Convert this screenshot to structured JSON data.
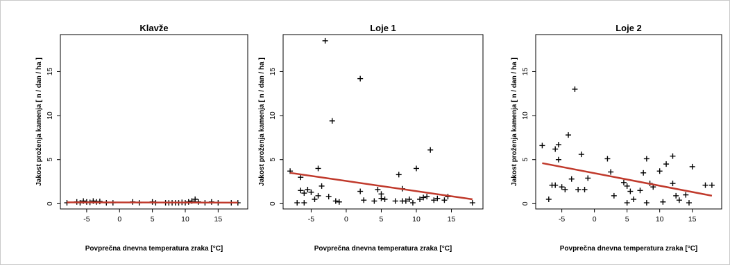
{
  "chart_data": [
    {
      "type": "scatter",
      "title": "Klavže",
      "xlabel": "Povprečna dnevna temperatura zraka [°C]",
      "ylabel": "Jakost proženja kamenja [ n / dan / ha ]",
      "xlim": [
        -9,
        19.5
      ],
      "ylim": [
        -0.6,
        19.2
      ],
      "xticks": [
        -5,
        0,
        5,
        10,
        15
      ],
      "yticks": [
        0,
        5,
        10,
        15
      ],
      "x_tick_labels": [
        "-5",
        "0",
        "5",
        "10",
        "15"
      ],
      "y_tick_labels": [
        "0",
        "5",
        "10",
        "15"
      ],
      "points": [
        [
          -8,
          0.1
        ],
        [
          -6.5,
          0.2
        ],
        [
          -6,
          0.1
        ],
        [
          -5.5,
          0.3
        ],
        [
          -5,
          0.2
        ],
        [
          -4.5,
          0.15
        ],
        [
          -4,
          0.3
        ],
        [
          -3.5,
          0.2
        ],
        [
          -3,
          0.25
        ],
        [
          -2,
          0.1
        ],
        [
          -1,
          0.1
        ],
        [
          2,
          0.2
        ],
        [
          3,
          0.1
        ],
        [
          5,
          0.2
        ],
        [
          5.5,
          0.1
        ],
        [
          7,
          0.1
        ],
        [
          7.5,
          0.1
        ],
        [
          8,
          0.1
        ],
        [
          8.5,
          0.1
        ],
        [
          9,
          0.1
        ],
        [
          9.5,
          0.15
        ],
        [
          10,
          0.1
        ],
        [
          10.5,
          0.2
        ],
        [
          11,
          0.3
        ],
        [
          11.5,
          0.5
        ],
        [
          12,
          0.2
        ],
        [
          13,
          0.1
        ],
        [
          14,
          0.2
        ],
        [
          15,
          0.1
        ],
        [
          17,
          0.1
        ],
        [
          18,
          0.1
        ]
      ],
      "trend": {
        "x": [
          -8,
          18
        ],
        "y": [
          0.15,
          0.12
        ]
      }
    },
    {
      "type": "scatter",
      "title": "Loje 1",
      "xlabel": "Povprečna dnevna temperatura zraka [°C]",
      "ylabel": "Jakost proženja kamenja [ n / dan / ha ]",
      "xlim": [
        -9,
        19.5
      ],
      "ylim": [
        -0.6,
        19.2
      ],
      "xticks": [
        -5,
        0,
        5,
        10,
        15
      ],
      "yticks": [
        0,
        5,
        10,
        15
      ],
      "x_tick_labels": [
        "-5",
        "0",
        "5",
        "10",
        "15"
      ],
      "y_tick_labels": [
        "0",
        "5",
        "10",
        "15"
      ],
      "points": [
        [
          -8,
          3.7
        ],
        [
          -7,
          0.1
        ],
        [
          -6.5,
          1.5
        ],
        [
          -6.5,
          3
        ],
        [
          -6,
          1.2
        ],
        [
          -6,
          0.1
        ],
        [
          -5.5,
          1.6
        ],
        [
          -5,
          1.3
        ],
        [
          -4.5,
          0.5
        ],
        [
          -4,
          4
        ],
        [
          -4,
          0.9
        ],
        [
          -3.5,
          2
        ],
        [
          -3,
          18.5
        ],
        [
          -2.5,
          0.8
        ],
        [
          -2,
          9.4
        ],
        [
          -1.5,
          0.3
        ],
        [
          -1,
          0.2
        ],
        [
          2,
          14.2
        ],
        [
          2,
          1.4
        ],
        [
          2.5,
          0.4
        ],
        [
          4,
          0.3
        ],
        [
          4.5,
          1.6
        ],
        [
          5,
          1.1
        ],
        [
          5,
          0.6
        ],
        [
          5.5,
          0.5
        ],
        [
          7,
          0.3
        ],
        [
          7.5,
          3.3
        ],
        [
          8,
          1.7
        ],
        [
          8,
          0.3
        ],
        [
          8.5,
          0.3
        ],
        [
          9,
          0.5
        ],
        [
          9.5,
          0.1
        ],
        [
          10,
          4
        ],
        [
          10.5,
          0.5
        ],
        [
          11,
          0.7
        ],
        [
          11.5,
          0.8
        ],
        [
          12,
          6.1
        ],
        [
          12.5,
          0.4
        ],
        [
          13,
          0.6
        ],
        [
          14,
          0.4
        ],
        [
          14.5,
          0.8
        ],
        [
          18,
          0.1
        ]
      ],
      "trend": {
        "x": [
          -8,
          18
        ],
        "y": [
          3.5,
          0.5
        ]
      }
    },
    {
      "type": "scatter",
      "title": "Loje 2",
      "xlabel": "Povprečna dnevna temperatura zraka [°C]",
      "ylabel": "Jakost proženja kamenja [ n / dan / ha ]",
      "xlim": [
        -9,
        19.5
      ],
      "ylim": [
        -0.6,
        19.2
      ],
      "xticks": [
        -5,
        0,
        5,
        10,
        15
      ],
      "yticks": [
        0,
        5,
        10,
        15
      ],
      "x_tick_labels": [
        "-5",
        "0",
        "5",
        "10",
        "15"
      ],
      "y_tick_labels": [
        "0",
        "5",
        "10",
        "15"
      ],
      "points": [
        [
          -8,
          6.6
        ],
        [
          -7,
          0.5
        ],
        [
          -6.5,
          2.1
        ],
        [
          -6,
          6.2
        ],
        [
          -6,
          2.1
        ],
        [
          -5.5,
          6.7
        ],
        [
          -5.5,
          5
        ],
        [
          -5,
          1.9
        ],
        [
          -4.5,
          1.6
        ],
        [
          -4,
          7.8
        ],
        [
          -3.5,
          2.8
        ],
        [
          -3,
          13
        ],
        [
          -2.5,
          1.6
        ],
        [
          -2,
          5.6
        ],
        [
          -1.5,
          1.6
        ],
        [
          -1,
          2.9
        ],
        [
          2,
          5.1
        ],
        [
          2.5,
          3.6
        ],
        [
          3,
          0.9
        ],
        [
          4.5,
          2.4
        ],
        [
          5,
          2
        ],
        [
          5,
          0.1
        ],
        [
          5.5,
          1.4
        ],
        [
          6,
          0.5
        ],
        [
          7,
          1.5
        ],
        [
          7.5,
          3.5
        ],
        [
          8,
          5.1
        ],
        [
          8,
          0.1
        ],
        [
          8.5,
          2.3
        ],
        [
          9,
          1.9
        ],
        [
          10,
          3.7
        ],
        [
          10.5,
          0.2
        ],
        [
          11,
          4.5
        ],
        [
          12,
          5.4
        ],
        [
          12,
          2.3
        ],
        [
          12.5,
          0.9
        ],
        [
          13,
          0.4
        ],
        [
          14,
          1
        ],
        [
          14.5,
          0.1
        ],
        [
          15,
          4.2
        ],
        [
          17,
          2.1
        ],
        [
          18,
          2.1
        ]
      ],
      "trend": {
        "x": [
          -8,
          18
        ],
        "y": [
          4.6,
          0.9
        ]
      }
    }
  ],
  "colors": {
    "points": "#000000",
    "trend": "#c0392b",
    "frame": "#c9c9c9"
  }
}
